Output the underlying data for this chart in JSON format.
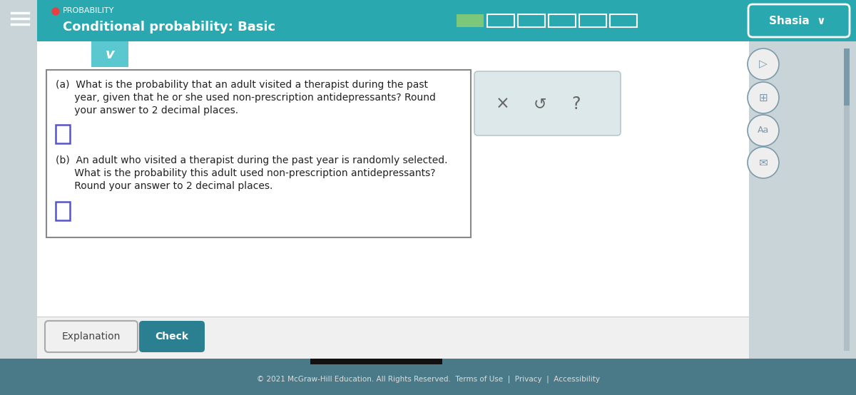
{
  "bg_color": "#c8d4d8",
  "header_teal": "#2aa8b0",
  "content_bg": "#ffffff",
  "sidebar_bg": "#ffffff",
  "far_right_bg": "#c8d4d8",
  "prob_label": "PROBABILITY",
  "prob_dot_color": "#e84040",
  "title": "Conditional probability: Basic",
  "progress_green": "#7bc87b",
  "progress_gray_border": "#c0d0d0",
  "progress_bg": "#2aa8b0",
  "shasia_text": "Shasia  v",
  "chevron_teal": "#5bc8d0",
  "q_box_border": "#888888",
  "q_text_color": "#222222",
  "input_border_color": "#5555cc",
  "ans_panel_bg": "#dce8ea",
  "ans_panel_border": "#b8c8cc",
  "icon_circle_bg": "#eeeeee",
  "icon_border_color": "#7a9aaa",
  "footer_sep_color": "#cccccc",
  "footer_btn_area_bg": "#f0f0f0",
  "expl_btn_bg": "#f0f0f0",
  "expl_btn_border": "#aaaaaa",
  "check_btn_color": "#2a8090",
  "bottom_bar_color": "#4a7a88",
  "footer_text": "© 2021 McGraw-Hill Education. All Rights Reserved.  Terms of Use  |  Privacy  |  Accessibility",
  "scroll_bar_color": "#222222",
  "explanation_btn": "Explanation",
  "check_btn": "Check"
}
